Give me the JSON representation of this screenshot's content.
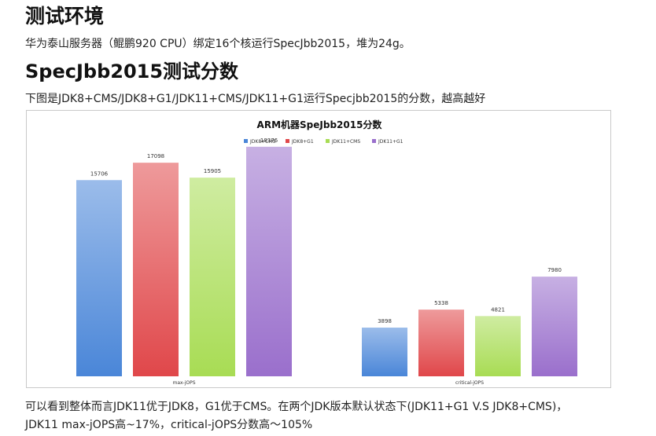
{
  "section1": {
    "heading": "测试环境",
    "description": "华为泰山服务器（鲲鹏920 CPU）绑定16个核运行SpecJbb2015，堆为24g。"
  },
  "section2": {
    "heading": "SpecJbb2015测试分数",
    "intro": "下图是JDK8+CMS/JDK8+G1/JDK11+CMS/JDK11+G1运行Specjbb2015的分数，越高越好"
  },
  "conclusion": {
    "line1": "可以看到整体而言JDK11优于JDK8，G1优于CMS。在两个JDK版本默认状态下(JDK11+G1 V.S JDK8+CMS)，",
    "line2": "JDK11 max-jOPS高~17%，critical-jOPS分数高～105%"
  },
  "chart_data": {
    "type": "bar",
    "title": "ARM机器SpeJbb2015分数",
    "categories": [
      "max-jOPS",
      "critical-jOPS"
    ],
    "series": [
      {
        "name": "JDK8+CMS",
        "values": [
          15706,
          3898
        ],
        "color": "#4a86d8"
      },
      {
        "name": "JDK8+G1",
        "values": [
          17098,
          5338
        ],
        "color": "#e0474a"
      },
      {
        "name": "JDK11+CMS",
        "values": [
          15905,
          4821
        ],
        "color": "#a8dc54"
      },
      {
        "name": "JDK11+G1",
        "values": [
          18376,
          7980
        ],
        "color": "#9a6fcc"
      }
    ],
    "ylim": [
      0,
      20000
    ],
    "legend": "top-center",
    "grid": false
  }
}
